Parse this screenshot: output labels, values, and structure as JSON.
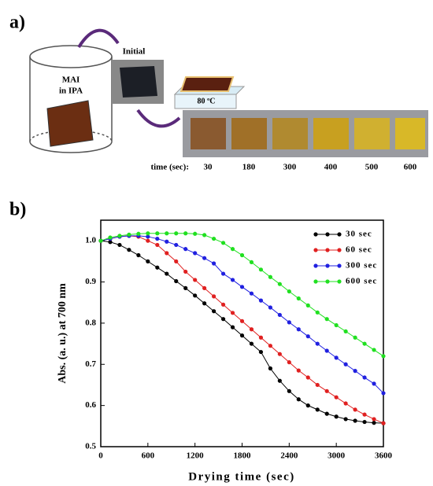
{
  "panel_a": {
    "label": "a)",
    "beaker_text": "MAI",
    "beaker_text_2": "in IPA",
    "initial": "Initial",
    "hotplate": "80 ºC",
    "time_label": "time (sec):",
    "times": [
      "30",
      "180",
      "300",
      "400",
      "500",
      "600"
    ]
  },
  "panel_b": {
    "label": "b)"
  },
  "chart_data": {
    "type": "line",
    "x_label": "Drying time (sec)",
    "y_label": "Abs. (a. u.) at 700 nm",
    "x": [
      0,
      120,
      240,
      360,
      480,
      600,
      720,
      840,
      960,
      1080,
      1200,
      1320,
      1440,
      1560,
      1680,
      1800,
      1920,
      2040,
      2160,
      2280,
      2400,
      2520,
      2640,
      2760,
      2880,
      3000,
      3120,
      3240,
      3360,
      3480,
      3600
    ],
    "series": [
      {
        "name": "30 sec",
        "color": "#000000",
        "values": [
          1.0,
          0.997,
          0.99,
          0.978,
          0.965,
          0.95,
          0.935,
          0.92,
          0.902,
          0.885,
          0.867,
          0.848,
          0.829,
          0.81,
          0.79,
          0.77,
          0.75,
          0.73,
          0.69,
          0.66,
          0.635,
          0.615,
          0.6,
          0.59,
          0.58,
          0.573,
          0.567,
          0.563,
          0.56,
          0.558,
          0.557
        ]
      },
      {
        "name": "60 sec",
        "color": "#e02020",
        "values": [
          1.0,
          1.005,
          1.01,
          1.012,
          1.01,
          1.0,
          0.99,
          0.97,
          0.95,
          0.925,
          0.905,
          0.885,
          0.865,
          0.845,
          0.825,
          0.805,
          0.785,
          0.765,
          0.745,
          0.725,
          0.705,
          0.685,
          0.668,
          0.65,
          0.635,
          0.62,
          0.605,
          0.59,
          0.578,
          0.567,
          0.557
        ]
      },
      {
        "name": "300 sec",
        "color": "#2020e0",
        "values": [
          1.0,
          1.005,
          1.01,
          1.012,
          1.012,
          1.01,
          1.005,
          0.998,
          0.99,
          0.98,
          0.97,
          0.958,
          0.945,
          0.92,
          0.905,
          0.888,
          0.872,
          0.855,
          0.838,
          0.82,
          0.802,
          0.785,
          0.768,
          0.75,
          0.733,
          0.716,
          0.7,
          0.684,
          0.668,
          0.653,
          0.63
        ]
      },
      {
        "name": "600 sec",
        "color": "#20e020",
        "values": [
          1.0,
          1.008,
          1.012,
          1.015,
          1.017,
          1.018,
          1.018,
          1.018,
          1.018,
          1.018,
          1.017,
          1.014,
          1.005,
          0.995,
          0.98,
          0.965,
          0.948,
          0.93,
          0.912,
          0.895,
          0.877,
          0.86,
          0.843,
          0.826,
          0.81,
          0.795,
          0.78,
          0.765,
          0.75,
          0.735,
          0.72
        ]
      }
    ],
    "xlim": [
      0,
      3600
    ],
    "xticks": [
      0,
      600,
      1200,
      1800,
      2400,
      3000,
      3600
    ],
    "ylim": [
      0.5,
      1.05
    ],
    "yticks": [
      0.5,
      0.6,
      0.7,
      0.8,
      0.9,
      {
        "value": 1,
        "label": "1.0"
      }
    ],
    "legend": "upper right"
  }
}
